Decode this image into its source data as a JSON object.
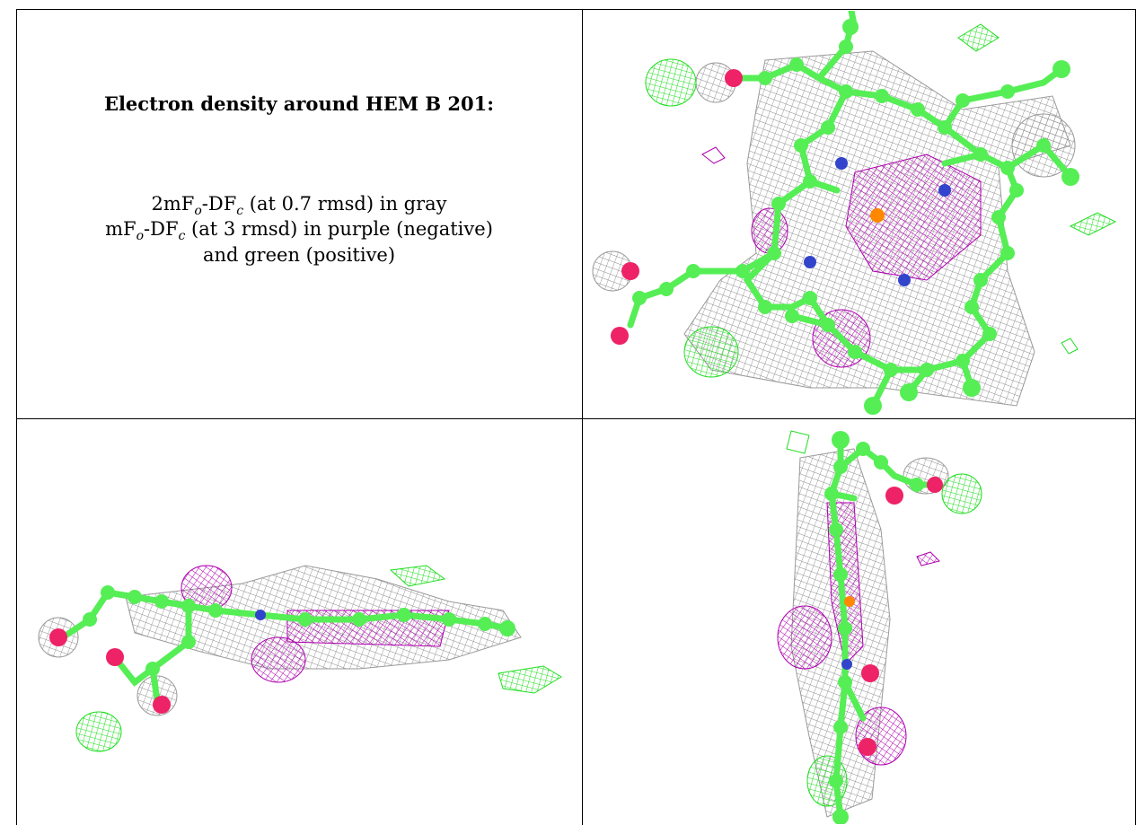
{
  "caption": {
    "title": "Electron density around HEM B 201:",
    "line1": {
      "pre": "2mF",
      "sub1": "o",
      "mid": "-DF",
      "sub2": "c",
      "post": " (at 0.7 rmsd) in gray"
    },
    "line2": {
      "pre": "mF",
      "sub1": "o",
      "mid": "-DF",
      "sub2": "c",
      "post": " (at 3 rmsd) in purple (negative)"
    },
    "line3": "and green (positive)"
  },
  "colors": {
    "gray_mesh": "#8c8c8c",
    "purple_mesh": "#b000b0",
    "green_mesh": "#22dd22",
    "carbon": "#55ee55",
    "oxygen": "#ee2266",
    "nitrogen": "#3344cc",
    "iron": "#ff8800"
  },
  "panels": [
    {
      "view": "top"
    },
    {
      "view": "side-horizontal"
    },
    {
      "view": "side-vertical"
    }
  ]
}
